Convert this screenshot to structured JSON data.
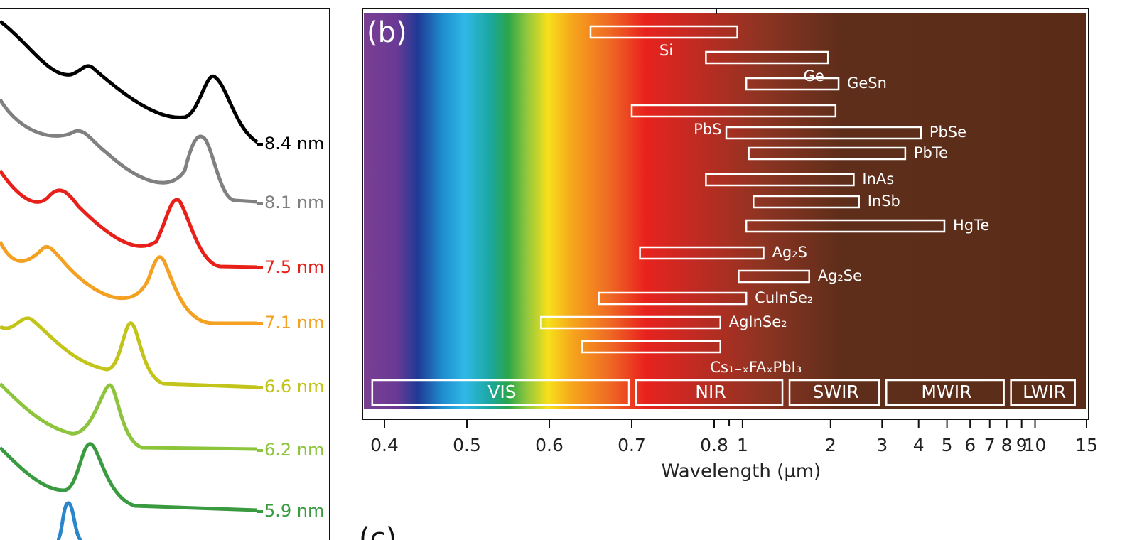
{
  "panel_a": {
    "series": [
      {
        "name": "8.4 nm",
        "color": "#000000"
      },
      {
        "name": "8.1 nm",
        "color": "#808080"
      },
      {
        "name": "7.5 nm",
        "color": "#e8201a"
      },
      {
        "name": "7.1 nm",
        "color": "#f4a020"
      },
      {
        "name": "6.6 nm",
        "color": "#c3c41a"
      },
      {
        "name": "6.2 nm",
        "color": "#8cc43c"
      },
      {
        "name": "5.9 nm",
        "color": "#3a9a40"
      }
    ],
    "extra_color": "#2a86c8"
  },
  "chart_data": {
    "type": "range",
    "panel_label": "(b)",
    "x_label": "Wavelength (µm)",
    "categories": [
      "Si",
      "Ge",
      "GeSn",
      "PbS",
      "PbSe",
      "PbTe",
      "InAs",
      "InSb",
      "HgTe",
      "Ag₂S",
      "Ag₂Se",
      "CuInSe₂",
      "AgInSe₂",
      "Cs₁₋ₓFAₓPbI₃"
    ],
    "values": [
      [
        0.65,
        0.96
      ],
      [
        0.79,
        1.96
      ],
      [
        1.03,
        2.13
      ],
      [
        0.7,
        2.08
      ],
      [
        0.88,
        4.07
      ],
      [
        1.05,
        3.6
      ],
      [
        0.79,
        2.4
      ],
      [
        1.09,
        2.5
      ],
      [
        1.03,
        4.9
      ],
      [
        0.71,
        1.18
      ],
      [
        0.97,
        1.69
      ],
      [
        0.66,
        1.03
      ],
      [
        0.59,
        0.84
      ],
      [
        0.64,
        0.84
      ]
    ],
    "color": "#ffffff",
    "bands": [
      {
        "label": "VIS",
        "range": [
          0.38,
          0.7
        ]
      },
      {
        "label": "NIR",
        "range": [
          0.7,
          1.4
        ]
      },
      {
        "label": "SWIR",
        "range": [
          1.4,
          3
        ]
      },
      {
        "label": "MWIR",
        "range": [
          3,
          8
        ]
      },
      {
        "label": "LWIR",
        "range": [
          8,
          14
        ]
      }
    ],
    "xscale": "linear-log",
    "xbreak": 0.8,
    "xlim": [
      0.375,
      15
    ],
    "xticks": [
      0.4,
      0.5,
      0.6,
      0.7,
      0.8,
      1,
      2,
      3,
      4,
      5,
      6,
      7,
      8,
      9,
      10,
      15
    ],
    "xminorticks": [
      0.9
    ]
  },
  "panel_c": {
    "label": "(c)"
  }
}
